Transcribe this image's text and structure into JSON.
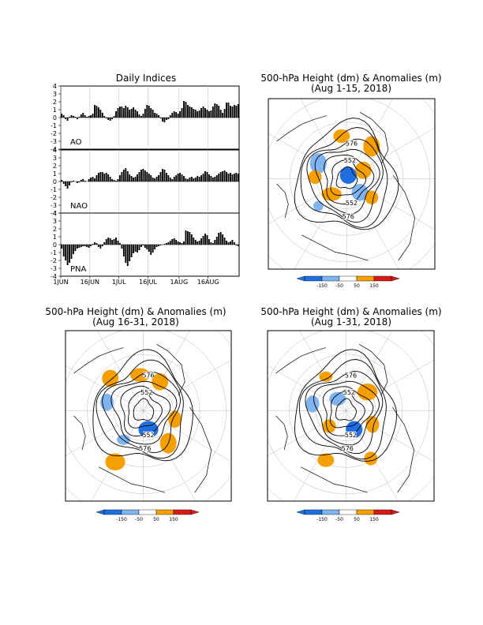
{
  "page": {
    "indices_title": "Daily Indices",
    "map1_title_line1": "500-hPa Height (dm) & Anomalies (m)",
    "map1_title_line2": "(Aug 1-15, 2018)",
    "map2_title_line1": "500-hPa Height (dm) & Anomalies (m)",
    "map2_title_line2": "(Aug 16-31, 2018)",
    "map3_title_line1": "500-hPa Height (dm) & Anomalies (m)",
    "map3_title_line2": "(Aug 1-31, 2018)"
  },
  "colorbar": {
    "labels": [
      "-150",
      "-50",
      "50",
      "150"
    ],
    "colors": {
      "dark_blue": "#1f6fe0",
      "light_blue": "#7fb4f0",
      "white": "#ffffff",
      "orange": "#f5a000",
      "red": "#d91a1a"
    }
  },
  "contour_labels": {
    "map1": [
      "576",
      "552",
      "552",
      "576"
    ],
    "map2": [
      "576",
      "552",
      "552",
      "576"
    ],
    "map3": [
      "576",
      "552",
      "552",
      "576"
    ]
  },
  "chart_data": [
    {
      "type": "bar",
      "name": "AO",
      "ylim": [
        -4,
        4
      ],
      "yticks": [
        4,
        3,
        2,
        1,
        0,
        -1,
        -2,
        -3,
        -4
      ],
      "values": [
        0.5,
        0.3,
        -0.2,
        -0.4,
        0.1,
        0.3,
        0.2,
        0.1,
        -0.2,
        0.1,
        0.4,
        0.6,
        0.3,
        0.1,
        0.2,
        0.3,
        0.5,
        1.6,
        1.5,
        1.3,
        1.0,
        0.6,
        0.2,
        -0.1,
        -0.3,
        -0.4,
        -0.2,
        0.2,
        0.8,
        1.2,
        1.4,
        1.4,
        1.2,
        1.5,
        1.3,
        1.0,
        1.1,
        1.3,
        1.0,
        0.8,
        0.4,
        0.2,
        0.5,
        1.1,
        1.6,
        1.5,
        1.2,
        1.0,
        0.6,
        0.5,
        0.3,
        -0.1,
        -0.5,
        -0.6,
        -0.3,
        -0.2,
        0.3,
        0.6,
        0.8,
        0.7,
        0.5,
        0.8,
        1.2,
        2.1,
        2.0,
        1.6,
        1.4,
        1.3,
        1.1,
        1.0,
        0.8,
        0.9,
        1.2,
        1.4,
        1.2,
        1.0,
        0.8,
        0.9,
        1.4,
        1.8,
        1.7,
        1.5,
        1.0,
        0.6,
        1.1,
        1.9,
        1.9,
        1.5,
        1.4,
        1.6,
        1.5,
        1.7
      ]
    },
    {
      "type": "bar",
      "name": "NAO",
      "ylim": [
        -4,
        4
      ],
      "yticks": [
        4,
        3,
        2,
        1,
        0,
        -1,
        -2,
        -3,
        -4
      ],
      "values": [
        0.2,
        -0.3,
        -0.6,
        -0.9,
        -0.5,
        -0.1,
        0.1,
        0.0,
        -0.2,
        -0.1,
        0.2,
        0.3,
        0.1,
        0.0,
        0.3,
        0.5,
        0.6,
        0.4,
        0.8,
        1.1,
        1.2,
        1.2,
        1.0,
        1.1,
        0.9,
        0.6,
        0.3,
        0.2,
        0.1,
        0.3,
        0.8,
        1.2,
        1.5,
        1.7,
        1.3,
        0.9,
        0.7,
        0.5,
        0.6,
        0.9,
        1.2,
        1.5,
        1.6,
        1.4,
        1.2,
        1.0,
        0.8,
        0.5,
        0.4,
        0.6,
        0.8,
        1.2,
        1.6,
        1.5,
        1.1,
        0.8,
        0.5,
        0.3,
        0.6,
        0.8,
        1.0,
        1.1,
        0.9,
        0.7,
        0.4,
        0.3,
        0.5,
        0.6,
        0.4,
        0.5,
        0.7,
        0.6,
        0.8,
        1.0,
        1.3,
        1.2,
        0.9,
        0.7,
        0.5,
        0.6,
        0.8,
        1.0,
        1.2,
        1.3,
        1.4,
        1.2,
        1.0,
        1.1,
        0.9,
        1.0,
        1.1,
        1.0
      ]
    },
    {
      "type": "bar",
      "name": "PNA",
      "ylim": [
        -4,
        4
      ],
      "yticks": [
        4,
        3,
        2,
        1,
        0,
        -1,
        -2,
        -3,
        -4
      ],
      "values": [
        -0.5,
        -1.5,
        -2.0,
        -2.6,
        -2.3,
        -1.8,
        -1.2,
        -0.8,
        -0.5,
        -0.4,
        -0.3,
        -0.2,
        -0.2,
        -0.3,
        -0.4,
        -0.2,
        0.1,
        0.3,
        0.2,
        -0.3,
        -0.5,
        -0.2,
        0.3,
        0.7,
        0.9,
        0.8,
        0.6,
        0.7,
        0.9,
        0.5,
        0.2,
        -0.5,
        -1.5,
        -2.3,
        -2.7,
        -2.1,
        -1.6,
        -1.1,
        -0.9,
        -1.0,
        -0.7,
        -0.3,
        -0.1,
        -0.4,
        -0.6,
        -0.9,
        -1.3,
        -1.0,
        -0.6,
        -0.3,
        -0.2,
        -0.1,
        0.0,
        0.1,
        0.2,
        0.3,
        0.5,
        0.7,
        0.8,
        0.6,
        0.4,
        0.3,
        0.2,
        0.4,
        1.8,
        1.7,
        1.6,
        1.3,
        0.9,
        0.6,
        0.4,
        0.5,
        0.8,
        1.1,
        1.4,
        1.2,
        0.7,
        0.3,
        0.2,
        0.6,
        1.0,
        1.5,
        1.6,
        1.3,
        0.9,
        0.5,
        0.3,
        0.4,
        0.6,
        0.3,
        -0.1,
        -0.2
      ]
    }
  ],
  "xaxis": {
    "ticks": [
      "1JUN",
      "16JUN",
      "1JUL",
      "16JUL",
      "1AUG",
      "16AUG"
    ],
    "tick_day_index": [
      0,
      15,
      30,
      45,
      61,
      76
    ]
  }
}
